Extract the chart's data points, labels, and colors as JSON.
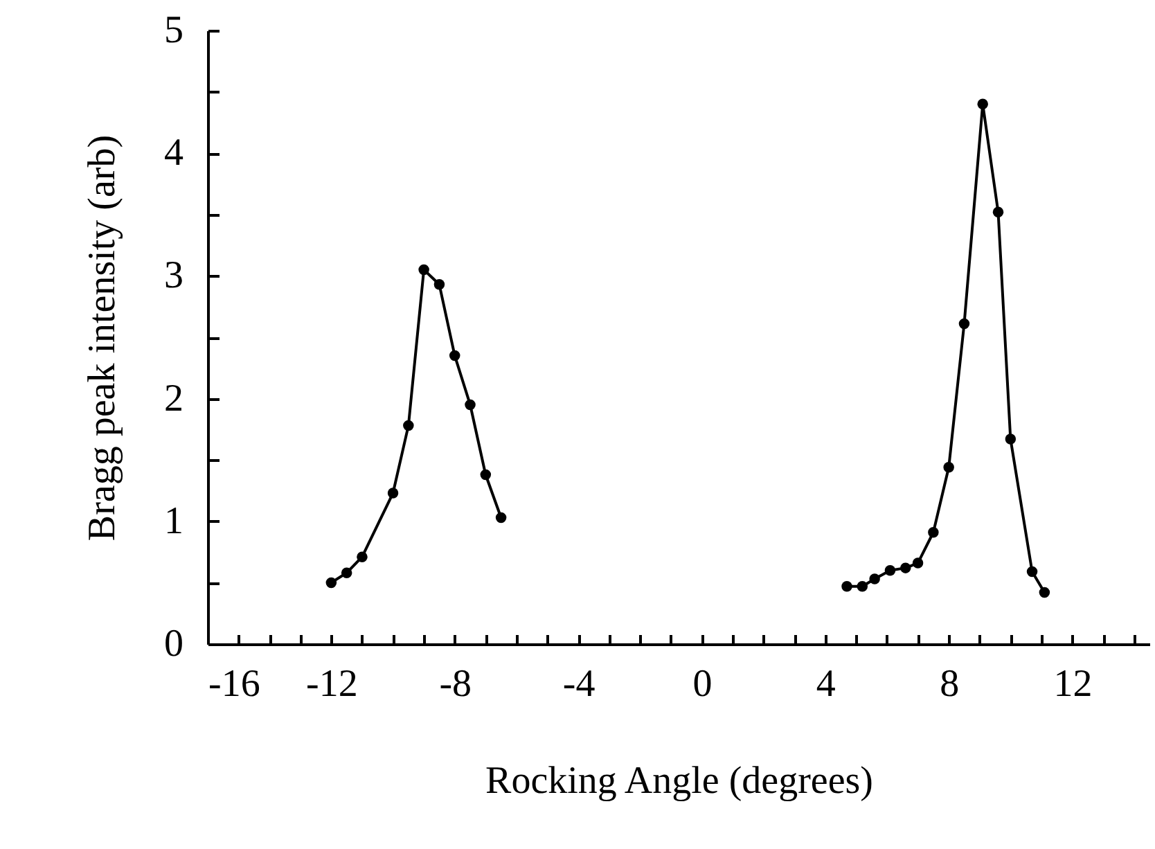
{
  "chart_data": {
    "type": "line",
    "xlabel": "Rocking Angle (degrees)",
    "ylabel": "Bragg peak intensity (arb)",
    "marker": "circle",
    "line_style": "solid",
    "grid": false,
    "xlim": [
      -16,
      14.5
    ],
    "ylim": [
      0,
      5
    ],
    "xticks": [
      -16,
      {
        "value": -15,
        "label": null
      },
      {
        "value": -14,
        "label": null
      },
      {
        "value": -13,
        "label": null
      },
      -12,
      {
        "value": -11,
        "label": null
      },
      {
        "value": -10,
        "label": null
      },
      {
        "value": -9,
        "label": null
      },
      -8,
      {
        "value": -7,
        "label": null
      },
      {
        "value": -6,
        "label": null
      },
      {
        "value": -5,
        "label": null
      },
      -4,
      {
        "value": -3,
        "label": null
      },
      {
        "value": -2,
        "label": null
      },
      {
        "value": -1,
        "label": null
      },
      0,
      {
        "value": 1,
        "label": null
      },
      {
        "value": 2,
        "label": null
      },
      {
        "value": 3,
        "label": null
      },
      4,
      {
        "value": 5,
        "label": null
      },
      {
        "value": 6,
        "label": null
      },
      {
        "value": 7,
        "label": null
      },
      8,
      {
        "value": 9,
        "label": null
      },
      {
        "value": 10,
        "label": null
      },
      {
        "value": 11,
        "label": null
      },
      12,
      {
        "value": 13,
        "label": null
      },
      {
        "value": 14,
        "label": null
      }
    ],
    "yticks": [
      0,
      {
        "value": 0.5,
        "label": null
      },
      1,
      {
        "value": 1.5,
        "label": null
      },
      2,
      {
        "value": 2.5,
        "label": null
      },
      3,
      {
        "value": 3.5,
        "label": null
      },
      4,
      {
        "value": 4.5,
        "label": null
      },
      5
    ],
    "series": [
      {
        "color": "#000000",
        "x": [
          -12,
          -11.5,
          -11,
          -10,
          -9.5,
          -9,
          -8.5,
          -8,
          -7.5,
          -7,
          -6.5
        ],
        "values": [
          0.5,
          0.58,
          0.71,
          1.23,
          1.78,
          3.05,
          2.93,
          2.35,
          1.95,
          1.38,
          1.03
        ]
      },
      {
        "color": "#000000",
        "x": [
          4.7,
          5.2,
          5.6,
          6.1,
          6.6,
          7.0,
          7.5,
          8.0,
          8.5,
          9.1,
          9.6,
          10.0,
          10.7,
          11.1
        ],
        "values": [
          0.47,
          0.47,
          0.53,
          0.6,
          0.62,
          0.66,
          0.91,
          1.44,
          2.61,
          4.4,
          3.52,
          1.67,
          0.59,
          0.42
        ]
      }
    ]
  }
}
